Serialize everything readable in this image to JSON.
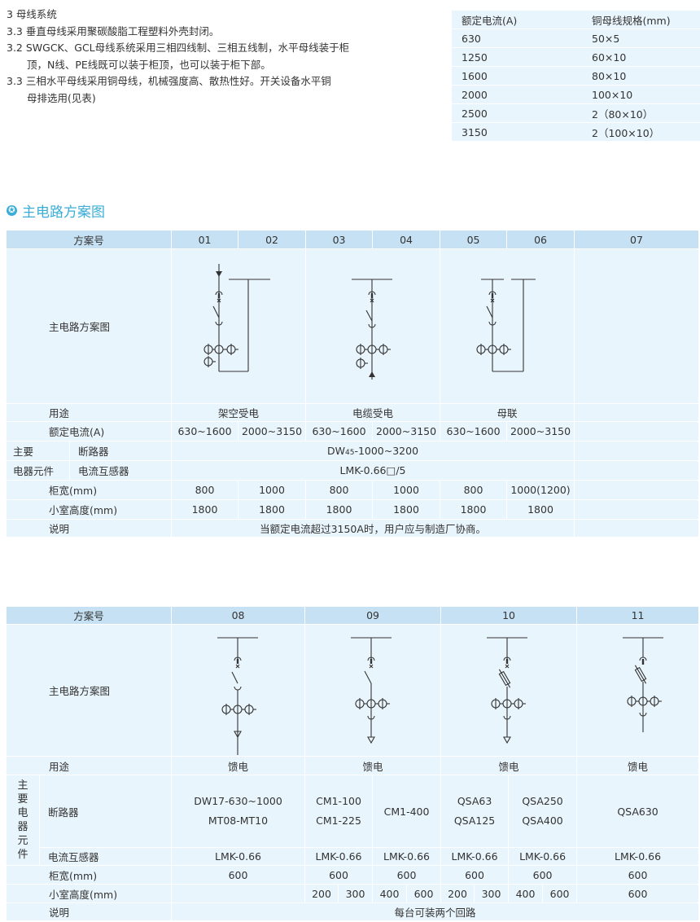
{
  "intro": {
    "lines": [
      "3 母线系统",
      "3.3 垂直母线采用聚碳酸脂工程塑料外壳封闭。",
      "3.2 SWGCK、GCL母线系统采用三相四线制、三相五线制，水平母线装于柜",
      "顶，N线、PE线既可以装于柜顶，也可以装于柜下部。",
      "3.3 三相水平母线采用铜母线，机械强度高、散热性好。开关设备水平铜",
      "母排选用(见表)"
    ]
  },
  "busbar_table": {
    "headers": [
      "额定电流(A)",
      "铜母线规格(mm)"
    ],
    "rows": [
      [
        "630",
        "50×5"
      ],
      [
        "1250",
        "60×10"
      ],
      [
        "1600",
        "80×10"
      ],
      [
        "2000",
        "100×10"
      ],
      [
        "2500",
        "2（80×10）"
      ],
      [
        "3150",
        "2（100×10）"
      ]
    ]
  },
  "section": {
    "title": "主电路方案图",
    "icon": "star-circle-icon",
    "accent": "#3aaed8"
  },
  "table1": {
    "scheme_label": "方案号",
    "schemes": [
      "01",
      "02",
      "03",
      "04",
      "05",
      "06",
      "07"
    ],
    "diagram_label": "主电路方案图",
    "use_label": "用途",
    "uses": [
      "架空受电",
      "电缆受电",
      "母联"
    ],
    "current_label": "额定电流(A)",
    "currents": [
      "630~1600",
      "2000~3150",
      "630~1600",
      "2000~3150",
      "630~1600",
      "2000~3150"
    ],
    "main_label_1": "主要",
    "main_label_2": "电器元件",
    "breaker_label": "断路器",
    "breaker_prefix": "DW",
    "breaker_sub": "45",
    "breaker_suffix": "-1000~3200",
    "ct_label": "电流互感器",
    "ct": "LMK-0.66□/5",
    "width_label": "柜宽(mm)",
    "widths": [
      "800",
      "1000",
      "800",
      "1000",
      "800",
      "1000(1200)"
    ],
    "height_label": "小室高度(mm)",
    "heights": [
      "1800",
      "1800",
      "1800",
      "1800",
      "1800",
      "1800"
    ],
    "note_label": "说明",
    "note": "当额定电流超过3150A时，用户应与制造厂协商。"
  },
  "table2": {
    "scheme_label": "方案号",
    "schemes": [
      "08",
      "09",
      "10",
      "11"
    ],
    "diagram_label": "主电路方案图",
    "use_label": "用途",
    "uses": [
      "馈电",
      "馈电",
      "馈电",
      "馈电"
    ],
    "main_label": "主要电器元件",
    "breaker_label": "断路器",
    "breakers": [
      [
        "DW17-630~1000",
        "MT08-MT10"
      ],
      [
        "CM1-100",
        "CM1-225"
      ],
      [
        "CM1-400"
      ],
      [
        "QSA63",
        "QSA125"
      ],
      [
        "QSA250",
        "QSA400"
      ],
      [
        "QSA630"
      ]
    ],
    "ct_label": "电流互感器",
    "ct": [
      "LMK-0.66",
      "LMK-0.66",
      "LMK-0.66",
      "LMK-0.66",
      "LMK-0.66",
      "LMK-0.66"
    ],
    "width_label": "柜宽(mm)",
    "widths": [
      "600",
      "600",
      "600",
      "600",
      "600",
      "600"
    ],
    "height_label": "小室高度(mm)",
    "heights": [
      "200",
      "300",
      "400",
      "600",
      "200",
      "300",
      "400",
      "600",
      "600"
    ],
    "note_label": "说明",
    "note": "每台可装两个回路"
  }
}
